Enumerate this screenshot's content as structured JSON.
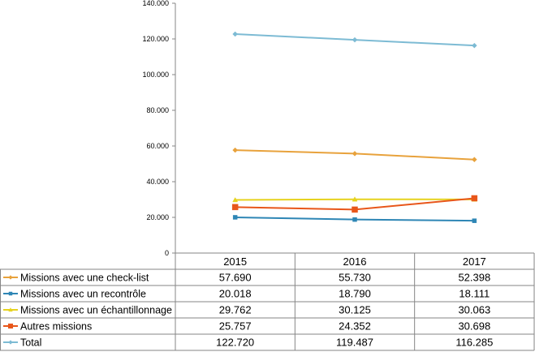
{
  "chart_data": {
    "type": "line",
    "title": "",
    "xlabel": "",
    "ylabel": "",
    "categories": [
      "2015",
      "2016",
      "2017"
    ],
    "ylim": [
      0,
      140000
    ],
    "yticks": [
      0,
      20000,
      40000,
      60000,
      80000,
      100000,
      120000,
      140000
    ],
    "ytick_labels": [
      "0",
      "20.000",
      "40.000",
      "60.000",
      "80.000",
      "100.000",
      "120.000",
      "140.000"
    ],
    "grid": false,
    "legend": "data-table-bottom",
    "series": [
      {
        "name": "Missions avec une check-list",
        "values": [
          57690,
          55730,
          52398
        ],
        "value_labels": [
          "57.690",
          "55.730",
          "52.398"
        ],
        "color": "#E8A23C",
        "marker": "diamond"
      },
      {
        "name": "Missions avec un recontrôle",
        "values": [
          20018,
          18790,
          18111
        ],
        "value_labels": [
          "20.018",
          "18.790",
          "18.111"
        ],
        "color": "#2E86B5",
        "marker": "square"
      },
      {
        "name": "Missions avec un échantillonnage",
        "values": [
          29762,
          30125,
          30063
        ],
        "value_labels": [
          "29.762",
          "30.125",
          "30.063"
        ],
        "color": "#E6D21E",
        "marker": "triangle"
      },
      {
        "name": "Autres missions",
        "values": [
          25757,
          24352,
          30698
        ],
        "value_labels": [
          "25.757",
          "24.352",
          "30.698"
        ],
        "color": "#E8561A",
        "marker": "square-large"
      },
      {
        "name": "Total",
        "values": [
          122720,
          119487,
          116285
        ],
        "value_labels": [
          "122.720",
          "119.487",
          "116.285"
        ],
        "color": "#7DBBD4",
        "marker": "diamond"
      }
    ]
  }
}
